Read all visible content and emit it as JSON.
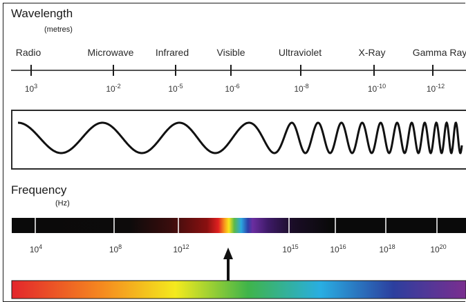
{
  "wavelength": {
    "title": "Wavelength",
    "unit": "(metres)",
    "bands": [
      "Radio",
      "Microwave",
      "Infrared",
      "Visible",
      "Ultraviolet",
      "X-Ray",
      "Gamma Ray"
    ],
    "ticks": [
      {
        "base": "10",
        "exp": "3"
      },
      {
        "base": "10",
        "exp": "-2"
      },
      {
        "base": "10",
        "exp": "-5"
      },
      {
        "base": "10",
        "exp": "-6"
      },
      {
        "base": "10",
        "exp": "-8"
      },
      {
        "base": "10",
        "exp": "-10"
      },
      {
        "base": "10",
        "exp": "-12"
      }
    ]
  },
  "frequency": {
    "title": "Frequency",
    "unit": "(Hz)",
    "ticks": [
      {
        "base": "10",
        "exp": "4"
      },
      {
        "base": "10",
        "exp": "8"
      },
      {
        "base": "10",
        "exp": "12"
      },
      {
        "base": "10",
        "exp": "15"
      },
      {
        "base": "10",
        "exp": "16"
      },
      {
        "base": "10",
        "exp": "18"
      },
      {
        "base": "10",
        "exp": "20"
      }
    ]
  },
  "colors": {
    "line": "#1a1a1a",
    "bar_dark": "#0d0d0d"
  }
}
